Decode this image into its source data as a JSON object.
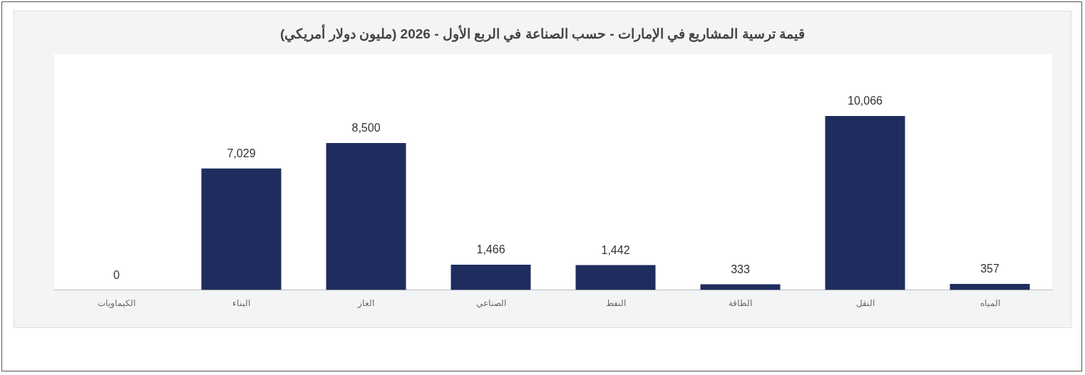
{
  "chart_data": {
    "type": "bar",
    "title": "قيمة ترسية المشاريع في الإمارات - حسب الصناعة في الربع الأول - 2026 (مليون دولار أمريكي)",
    "categories": [
      "الكيماويات",
      "البناء",
      "الغاز",
      "الصناعي",
      "النفط",
      "الطاقة",
      "النقل",
      "المياه"
    ],
    "values": [
      0,
      7029,
      8500,
      1466,
      1442,
      333,
      10066,
      357
    ],
    "value_labels": [
      "0",
      "7,029",
      "8,500",
      "1,466",
      "1,442",
      "333",
      "10,066",
      "357"
    ],
    "color": "#1f2d5e",
    "grid": false,
    "legend": false
  }
}
